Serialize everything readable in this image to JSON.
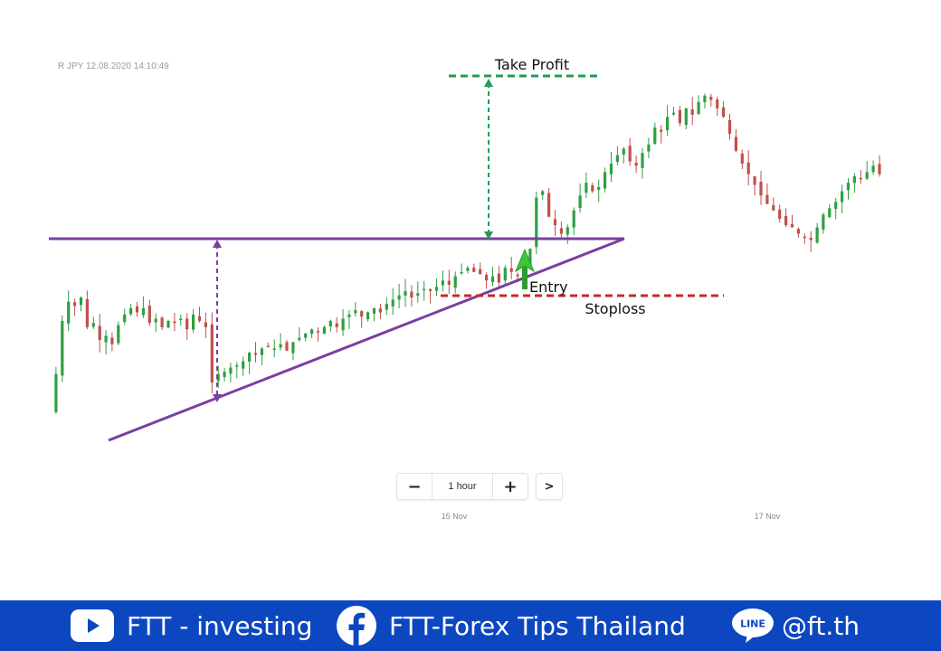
{
  "chart_data": {
    "type": "candlestick",
    "symbol_timestamp": "R JPY  12.08.2020 14:10:49",
    "x_ticks": [
      "15 Nov",
      "17 Nov"
    ],
    "timeframe": "1 hour",
    "annotations": {
      "take_profit": "Take Profit",
      "entry": "Entry",
      "stoploss": "Stoploss"
    },
    "pattern": "ascending triangle",
    "price_path": [
      0.06,
      0.24,
      0.49,
      0.58,
      0.56,
      0.6,
      0.46,
      0.48,
      0.4,
      0.42,
      0.38,
      0.47,
      0.52,
      0.55,
      0.53,
      0.55,
      0.48,
      0.5,
      0.46,
      0.49,
      0.48,
      0.5,
      0.45,
      0.52,
      0.49,
      0.46,
      0.2,
      0.24,
      0.25,
      0.27,
      0.28,
      0.3,
      0.34,
      0.33,
      0.36,
      0.37,
      0.36,
      0.38,
      0.35,
      0.39,
      0.41,
      0.43,
      0.45,
      0.44,
      0.46,
      0.49,
      0.46,
      0.5,
      0.52,
      0.54,
      0.51,
      0.53,
      0.55,
      0.53,
      0.57,
      0.59,
      0.61,
      0.63,
      0.6,
      0.62,
      0.64,
      0.63,
      0.65,
      0.68,
      0.66,
      0.7,
      0.72,
      0.74,
      0.72,
      0.71,
      0.68,
      0.7,
      0.67,
      0.74,
      0.72,
      0.7,
      0.74,
      0.83,
      1.07,
      1.1,
      0.98,
      0.94,
      0.9,
      0.93,
      1.01,
      1.08,
      1.14,
      1.1,
      1.12,
      1.19,
      1.23,
      1.27,
      1.3,
      1.24,
      1.22,
      1.28,
      1.32,
      1.4,
      1.38,
      1.45,
      1.47,
      1.42,
      1.49,
      1.46,
      1.52,
      1.55,
      1.53,
      1.49,
      1.45,
      1.37,
      1.29,
      1.23,
      1.18,
      1.13,
      1.08,
      1.04,
      1.01,
      0.97,
      0.94,
      0.93,
      0.9,
      0.88,
      0.87,
      0.93,
      0.99,
      1.02,
      1.05,
      1.1,
      1.14,
      1.17,
      1.16,
      1.19,
      1.22,
      1.18
    ]
  },
  "zoom_controls": {
    "minus": "−",
    "timeframe": "1 hour",
    "plus": "+",
    "next": ">"
  },
  "footer": {
    "youtube_label": "FTT - investing",
    "facebook_label": "FTT-Forex Tips Thailand",
    "line_label": "@ft.th",
    "line_badge": "LINE",
    "background": "#0d47c0"
  },
  "colors": {
    "bull": "#2ea043",
    "bear": "#c0504d",
    "triangle": "#7a3fa0",
    "take_profit": "#1f9d55",
    "stoploss": "#c62828",
    "entry_arrow": "#3cc43c"
  }
}
